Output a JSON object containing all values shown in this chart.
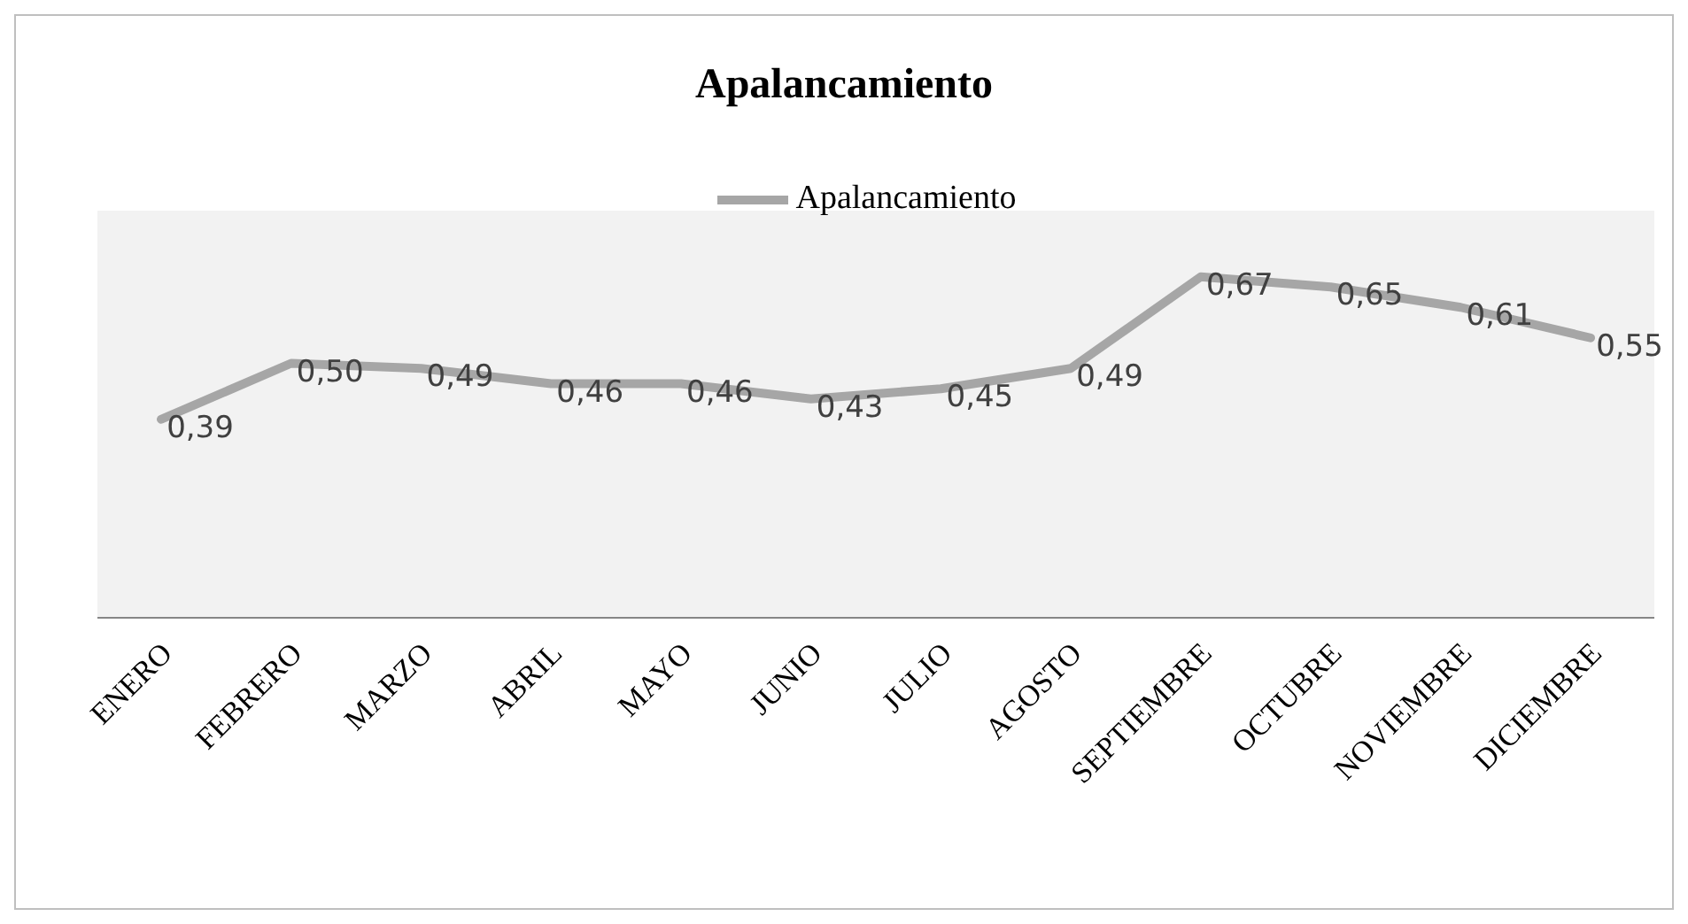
{
  "chart_data": {
    "type": "line",
    "title": "Apalancamiento",
    "categories": [
      "ENERO",
      "FEBRERO",
      "MARZO",
      "ABRIL",
      "MAYO",
      "JUNIO",
      "JULIO",
      "AGOSTO",
      "SEPTIEMBRE",
      "OCTUBRE",
      "NOVIEMBRE",
      "DICIEMBRE"
    ],
    "series": [
      {
        "name": "Apalancamiento",
        "color": "#a6a6a6",
        "values": [
          0.39,
          0.5,
          0.49,
          0.46,
          0.46,
          0.43,
          0.45,
          0.49,
          0.67,
          0.65,
          0.61,
          0.55
        ],
        "value_labels": [
          "0,39",
          "0,50",
          "0,49",
          "0,46",
          "0,46",
          "0,43",
          "0,45",
          "0,49",
          "0,67",
          "0,65",
          "0,61",
          "0,55"
        ]
      }
    ],
    "legend": "top",
    "grid": false,
    "marker": "none",
    "line_style": "solid"
  }
}
